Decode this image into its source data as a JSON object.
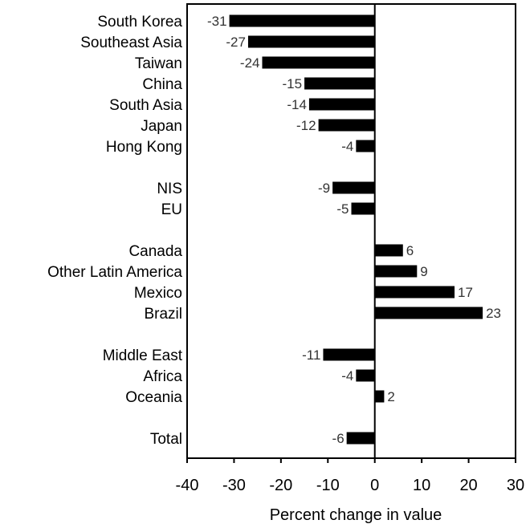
{
  "chart_data": {
    "type": "bar",
    "orientation": "horizontal",
    "title": "",
    "xlabel": "Percent change in value",
    "ylabel": "",
    "xlim": [
      -40,
      30
    ],
    "xticks": [
      -40,
      -30,
      -20,
      -10,
      0,
      10,
      20,
      30
    ],
    "grid": false,
    "categories": [
      "South Korea",
      "Southeast Asia",
      "Taiwan",
      "China",
      "South Asia",
      "Japan",
      "Hong Kong",
      "NIS",
      "EU",
      "Canada",
      "Other Latin America",
      "Mexico",
      "Brazil",
      "Middle East",
      "Africa",
      "Oceania",
      "Total"
    ],
    "groups": [
      7,
      2,
      4,
      3,
      1
    ],
    "values": [
      -31,
      -27,
      -24,
      -15,
      -14,
      -12,
      -4,
      -9,
      -5,
      6,
      9,
      17,
      23,
      -11,
      -4,
      2,
      -6
    ],
    "value_labels": [
      "-31",
      "-27",
      "-24",
      "-15",
      "-14",
      "-12",
      "-4",
      "-9",
      "-5",
      "6",
      "9",
      "17",
      "23",
      "-11",
      "-4",
      "2",
      "-6"
    ],
    "bar_color": "#000000"
  }
}
